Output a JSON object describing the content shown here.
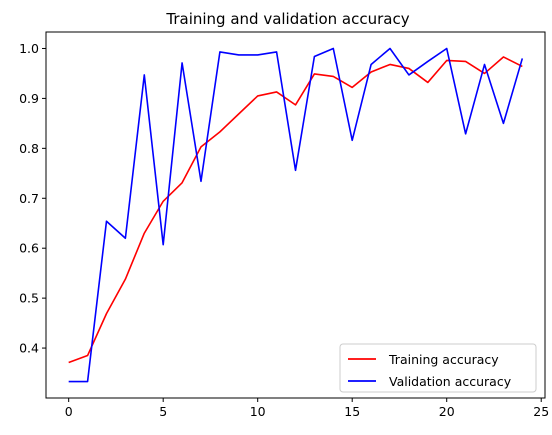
{
  "chart_data": {
    "type": "line",
    "title": "Training and validation accuracy",
    "xlabel": "",
    "ylabel": "",
    "xlim": [
      -1.2,
      25.2
    ],
    "ylim": [
      0.3,
      1.033
    ],
    "x_ticks": [
      0,
      5,
      10,
      15,
      20,
      25
    ],
    "y_ticks": [
      0.4,
      0.5,
      0.6,
      0.7,
      0.8,
      0.9,
      1.0
    ],
    "y_tick_labels": [
      "0.4",
      "0.5",
      "0.6",
      "0.7",
      "0.8",
      "0.9",
      "1.0"
    ],
    "grid": false,
    "legend_position": "lower-right",
    "x": [
      0,
      1,
      2,
      3,
      4,
      5,
      6,
      7,
      8,
      9,
      10,
      11,
      12,
      13,
      14,
      15,
      16,
      17,
      18,
      19,
      20,
      21,
      22,
      23,
      24
    ],
    "series": [
      {
        "name": "Training accuracy",
        "color": "#ff0000",
        "values": [
          0.371,
          0.385,
          0.469,
          0.538,
          0.63,
          0.694,
          0.731,
          0.803,
          0.833,
          0.869,
          0.905,
          0.913,
          0.887,
          0.949,
          0.944,
          0.922,
          0.953,
          0.968,
          0.96,
          0.932,
          0.976,
          0.974,
          0.95,
          0.983,
          0.964
        ]
      },
      {
        "name": "Validation accuracy",
        "color": "#0000ff",
        "values": [
          0.333,
          0.333,
          0.654,
          0.62,
          0.947,
          0.607,
          0.971,
          0.734,
          0.993,
          0.987,
          0.987,
          0.993,
          0.756,
          0.984,
          1.0,
          0.816,
          0.968,
          1.0,
          0.947,
          0.974,
          1.0,
          0.829,
          0.968,
          0.85,
          0.98
        ]
      }
    ]
  }
}
